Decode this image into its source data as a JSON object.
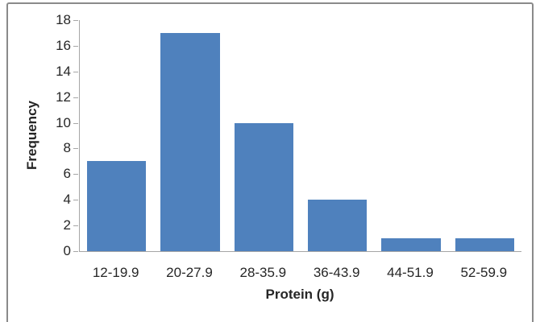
{
  "chart_data": {
    "type": "bar",
    "title": "",
    "categories": [
      "12-19.9",
      "20-27.9",
      "28-35.9",
      "36-43.9",
      "44-51.9",
      "52-59.9"
    ],
    "values": [
      7,
      17,
      10,
      4,
      1,
      1
    ],
    "xlabel": "Protein (g)",
    "ylabel": "Frequency",
    "ylim": [
      0,
      18
    ],
    "yticks": [
      0,
      2,
      4,
      6,
      8,
      10,
      12,
      14,
      16,
      18
    ],
    "grid": false,
    "legend": "none",
    "bar_color": "#4F81BD",
    "axis_color": "#A6A6A6",
    "text_color": "#262626",
    "frame_border_color": "#8A8A8A",
    "background": "#FFFFFF"
  }
}
